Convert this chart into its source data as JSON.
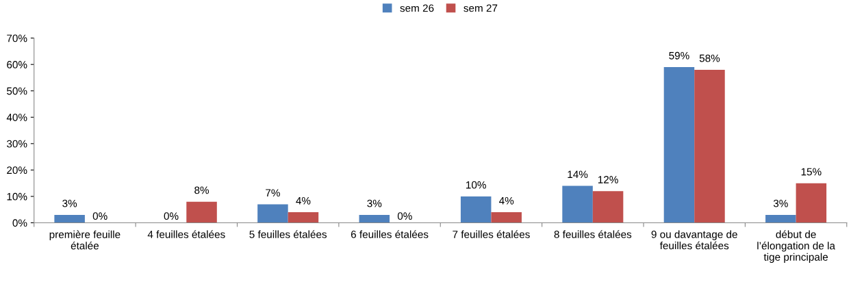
{
  "chart_data": {
    "type": "bar",
    "categories": [
      "première feuille\nétalée",
      "4 feuilles étalées",
      "5 feuilles étalées",
      "6 feuilles étalées",
      "7 feuilles étalées",
      "8 feuilles étalées",
      "9 ou davantage de\nfeuilles étalées",
      "début de\nl’élongation de la\ntige principale"
    ],
    "series": [
      {
        "name": "sem 26",
        "color": "#4f81bd",
        "values": [
          3,
          0,
          7,
          3,
          10,
          14,
          59,
          3
        ],
        "value_labels": [
          "3%",
          "0%",
          "7%",
          "3%",
          "10%",
          "14%",
          "59%",
          "3%"
        ]
      },
      {
        "name": "sem 27",
        "color": "#c0504d",
        "values": [
          0,
          8,
          4,
          0,
          4,
          12,
          58,
          15
        ],
        "value_labels": [
          "0%",
          "8%",
          "4%",
          "0%",
          "4%",
          "12%",
          "58%",
          "15%"
        ]
      }
    ],
    "ylim": [
      0,
      70
    ],
    "yticks": [
      {
        "value": 0,
        "label": "0%"
      },
      {
        "value": 10,
        "label": "10%"
      },
      {
        "value": 20,
        "label": "20%"
      },
      {
        "value": 30,
        "label": "30%"
      },
      {
        "value": 40,
        "label": "40%"
      },
      {
        "value": 50,
        "label": "50%"
      },
      {
        "value": 60,
        "label": "60%"
      },
      {
        "value": 70,
        "label": "70%"
      }
    ],
    "grid": false,
    "legend": "top"
  }
}
